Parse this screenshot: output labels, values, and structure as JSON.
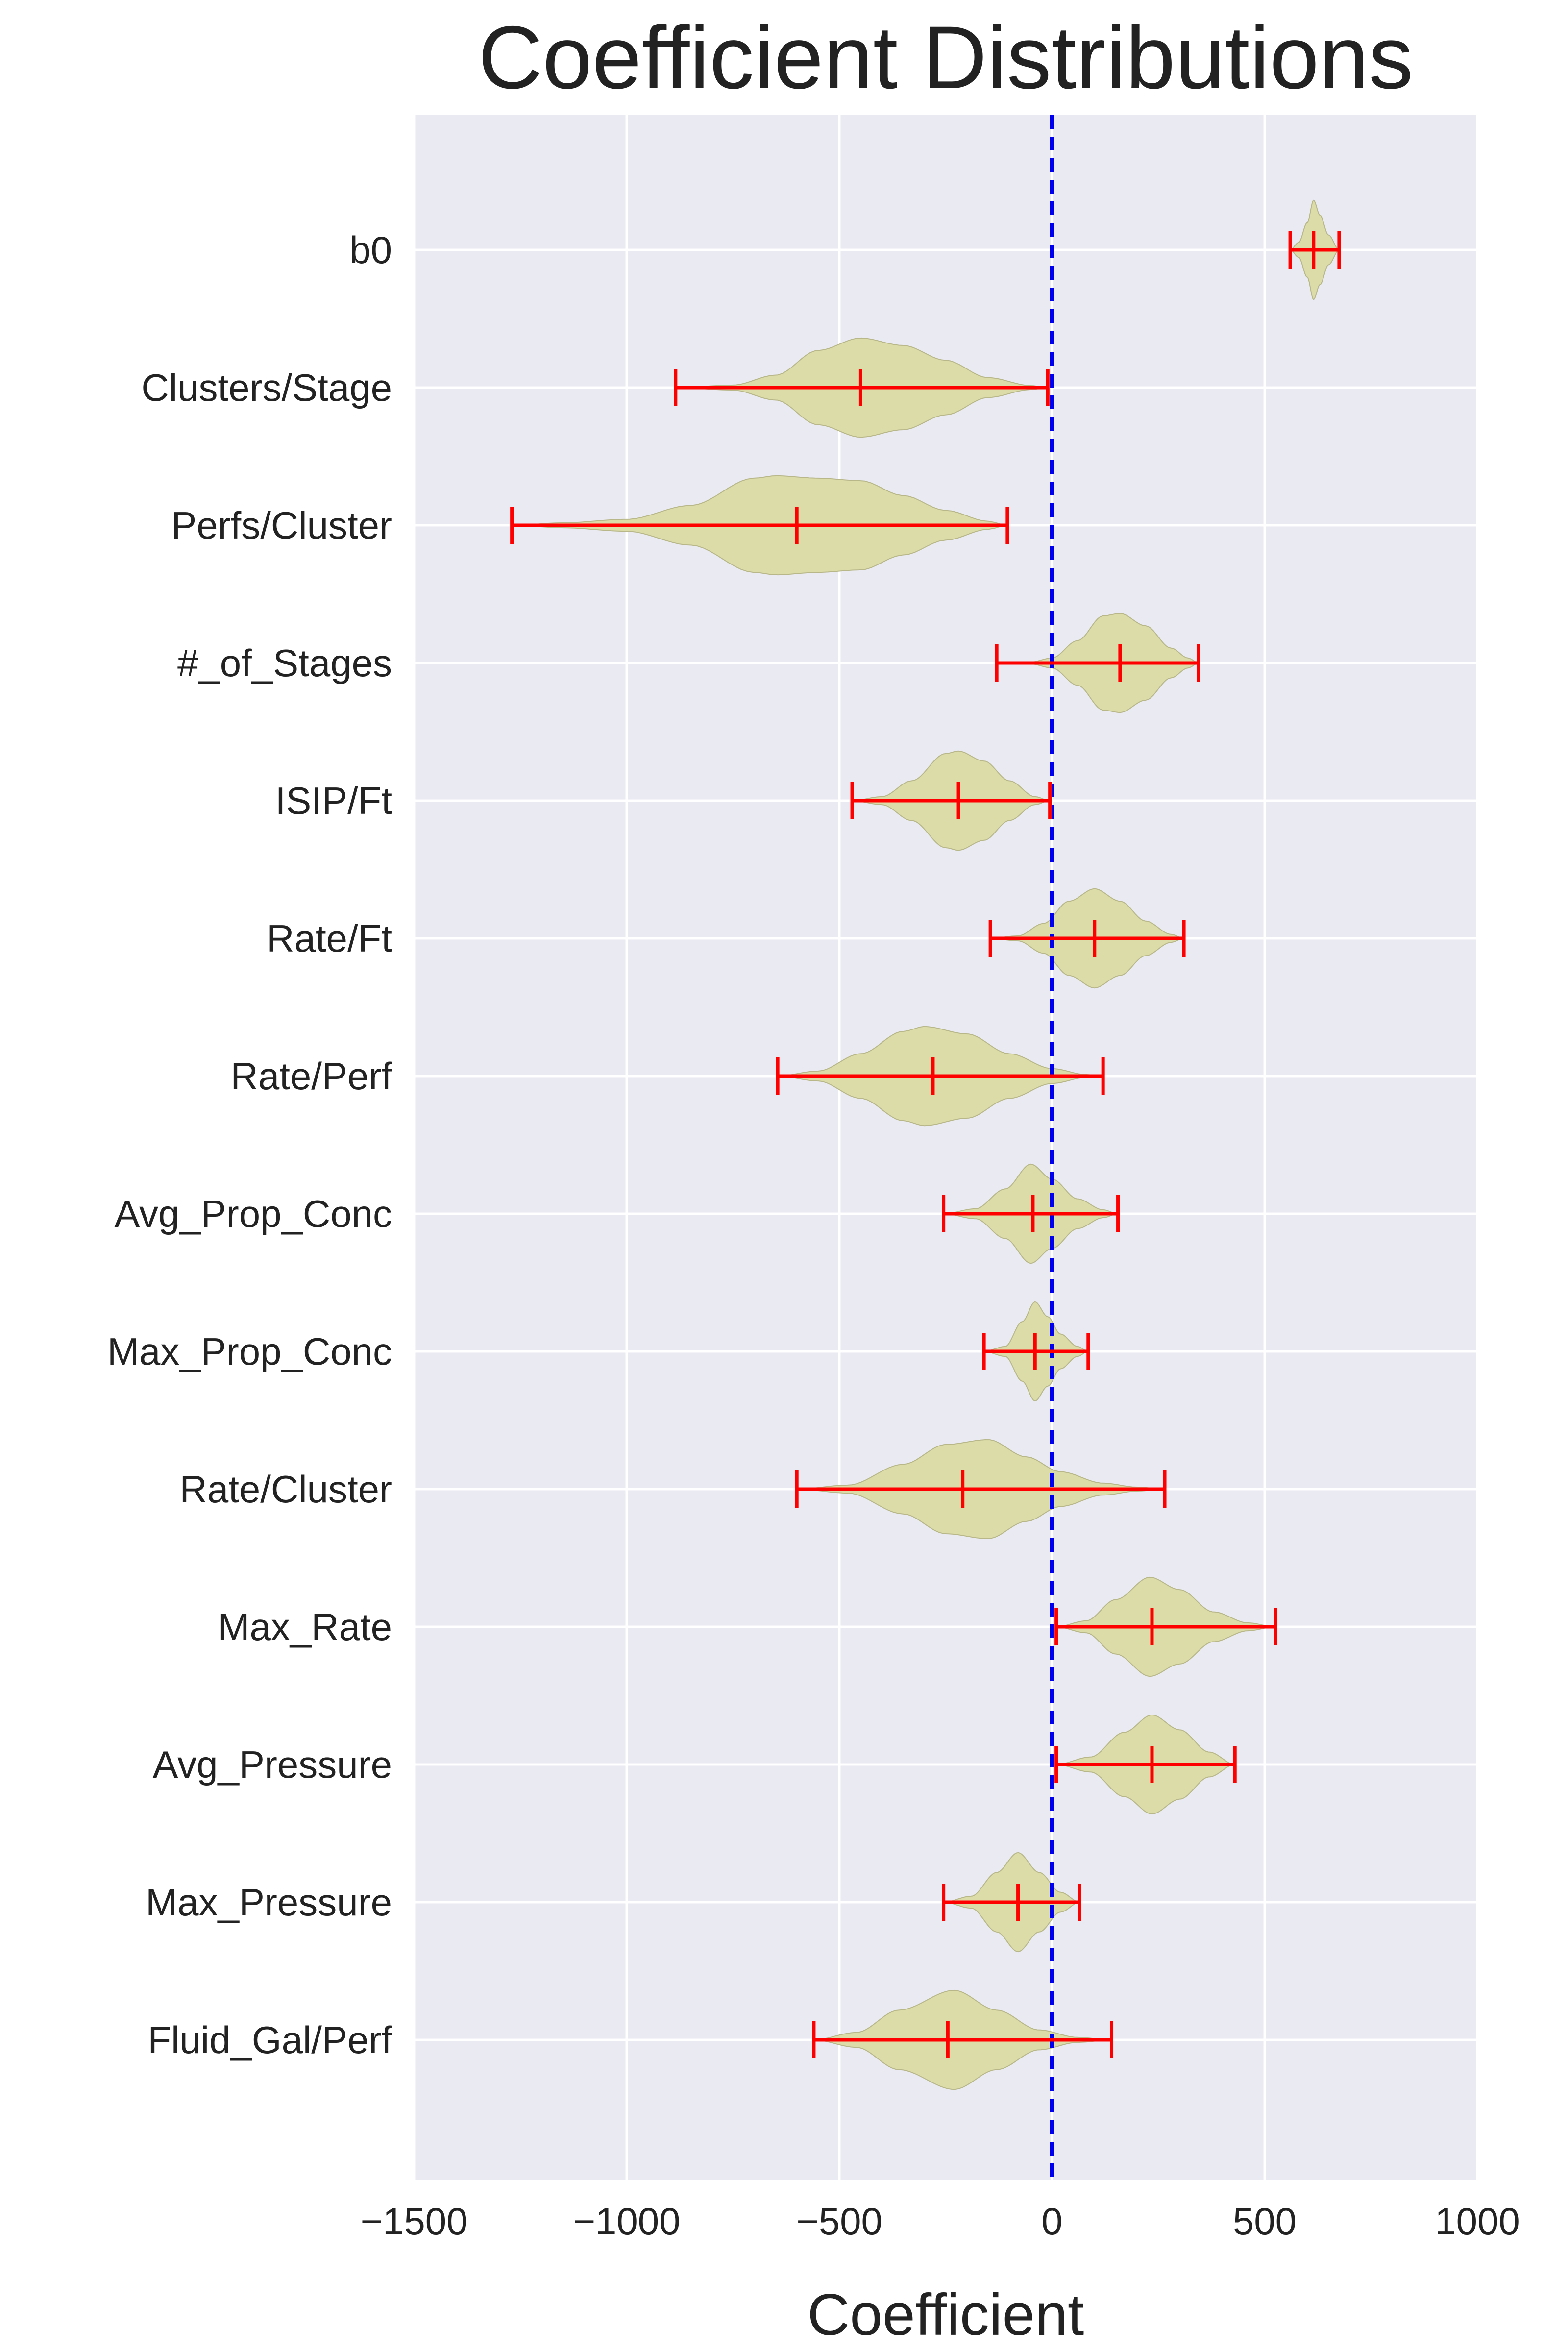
{
  "chart_data": {
    "type": "violin",
    "orientation": "horizontal",
    "title": "Coefficient Distributions",
    "xlabel": "Coefficient",
    "ylabel": "",
    "xlim": [
      -1500,
      1000
    ],
    "xticks": [
      -1500,
      -1000,
      -500,
      0,
      500,
      1000
    ],
    "xtick_labels": [
      "−1500",
      "−1000",
      "−500",
      "0",
      "500",
      "1000"
    ],
    "grid": true,
    "reference_line": {
      "x": 0,
      "style": "dashed",
      "color": "#0000ee"
    },
    "colors": {
      "background": "#eaeaf2",
      "violin_fill": "#dcdca8",
      "violin_edge": "#b7b78a",
      "interval": "#ff0000",
      "grid": "#ffffff"
    },
    "categories": [
      "b0",
      "Clusters/Stage",
      "Perfs/Cluster",
      "#_of_Stages",
      "ISIP/Ft",
      "Rate/Ft",
      "Rate/Perf",
      "Avg_Prop_Conc",
      "Max_Prop_Conc",
      "Rate/Cluster",
      "Max_Rate",
      "Avg_Pressure",
      "Max_Pressure",
      "Fluid_Gal/Perf"
    ],
    "series": [
      {
        "label": "b0",
        "min": 560,
        "median": 615,
        "max": 675,
        "profile": [
          [
            560,
            0
          ],
          [
            580,
            0.15
          ],
          [
            600,
            0.55
          ],
          [
            615,
            1.0
          ],
          [
            630,
            0.7
          ],
          [
            650,
            0.3
          ],
          [
            675,
            0
          ]
        ],
        "halfwidth": 0.35
      },
      {
        "label": "Clusters/Stage",
        "min": -885,
        "median": -450,
        "max": -10,
        "profile": [
          [
            -885,
            0
          ],
          [
            -750,
            0.05
          ],
          [
            -650,
            0.25
          ],
          [
            -550,
            0.75
          ],
          [
            -450,
            1.0
          ],
          [
            -350,
            0.85
          ],
          [
            -250,
            0.55
          ],
          [
            -150,
            0.2
          ],
          [
            -50,
            0.04
          ],
          [
            -10,
            0
          ]
        ],
        "halfwidth": 0.35
      },
      {
        "label": "Perfs/Cluster",
        "min": -1270,
        "median": -600,
        "max": -105,
        "profile": [
          [
            -1270,
            0
          ],
          [
            -1150,
            0.05
          ],
          [
            -1000,
            0.12
          ],
          [
            -850,
            0.4
          ],
          [
            -700,
            0.95
          ],
          [
            -650,
            1.0
          ],
          [
            -550,
            0.95
          ],
          [
            -450,
            0.9
          ],
          [
            -350,
            0.6
          ],
          [
            -250,
            0.3
          ],
          [
            -150,
            0.08
          ],
          [
            -105,
            0
          ]
        ],
        "halfwidth": 0.35
      },
      {
        "label": "#_of_Stages",
        "min": -130,
        "median": 160,
        "max": 345,
        "profile": [
          [
            -130,
            0
          ],
          [
            -50,
            0.02
          ],
          [
            0,
            0.1
          ],
          [
            60,
            0.45
          ],
          [
            120,
            0.95
          ],
          [
            160,
            1.0
          ],
          [
            220,
            0.75
          ],
          [
            280,
            0.3
          ],
          [
            320,
            0.1
          ],
          [
            345,
            0
          ]
        ],
        "halfwidth": 0.35
      },
      {
        "label": "ISIP/Ft",
        "min": -470,
        "median": -220,
        "max": -5,
        "profile": [
          [
            -470,
            0
          ],
          [
            -400,
            0.08
          ],
          [
            -330,
            0.4
          ],
          [
            -250,
            0.95
          ],
          [
            -220,
            1.0
          ],
          [
            -160,
            0.8
          ],
          [
            -100,
            0.4
          ],
          [
            -40,
            0.08
          ],
          [
            -5,
            0
          ]
        ],
        "halfwidth": 0.35
      },
      {
        "label": "Rate/Ft",
        "min": -145,
        "median": 100,
        "max": 310,
        "profile": [
          [
            -145,
            0
          ],
          [
            -80,
            0.05
          ],
          [
            -20,
            0.3
          ],
          [
            40,
            0.75
          ],
          [
            100,
            1.0
          ],
          [
            160,
            0.75
          ],
          [
            220,
            0.35
          ],
          [
            280,
            0.08
          ],
          [
            310,
            0
          ]
        ],
        "halfwidth": 0.35
      },
      {
        "label": "Rate/Perf",
        "min": -645,
        "median": -280,
        "max": 120,
        "profile": [
          [
            -645,
            0
          ],
          [
            -550,
            0.1
          ],
          [
            -450,
            0.45
          ],
          [
            -350,
            0.9
          ],
          [
            -300,
            1.0
          ],
          [
            -200,
            0.85
          ],
          [
            -100,
            0.45
          ],
          [
            0,
            0.15
          ],
          [
            80,
            0.03
          ],
          [
            120,
            0
          ]
        ],
        "halfwidth": 0.35
      },
      {
        "label": "Avg_Prop_Conc",
        "min": -255,
        "median": -45,
        "max": 155,
        "profile": [
          [
            -255,
            0
          ],
          [
            -180,
            0.1
          ],
          [
            -110,
            0.5
          ],
          [
            -50,
            1.0
          ],
          [
            0,
            0.7
          ],
          [
            60,
            0.3
          ],
          [
            120,
            0.08
          ],
          [
            155,
            0
          ]
        ],
        "halfwidth": 0.35
      },
      {
        "label": "Max_Prop_Conc",
        "min": -160,
        "median": -40,
        "max": 85,
        "profile": [
          [
            -160,
            0
          ],
          [
            -110,
            0.1
          ],
          [
            -70,
            0.6
          ],
          [
            -40,
            1.0
          ],
          [
            -10,
            0.7
          ],
          [
            20,
            0.35
          ],
          [
            60,
            0.1
          ],
          [
            85,
            0
          ]
        ],
        "halfwidth": 0.35
      },
      {
        "label": "Rate/Cluster",
        "min": -600,
        "median": -210,
        "max": 265,
        "profile": [
          [
            -600,
            0
          ],
          [
            -480,
            0.08
          ],
          [
            -350,
            0.5
          ],
          [
            -250,
            0.9
          ],
          [
            -150,
            1.0
          ],
          [
            -60,
            0.65
          ],
          [
            20,
            0.35
          ],
          [
            120,
            0.12
          ],
          [
            200,
            0.04
          ],
          [
            265,
            0
          ]
        ],
        "halfwidth": 0.35
      },
      {
        "label": "Max_Rate",
        "min": 10,
        "median": 235,
        "max": 525,
        "profile": [
          [
            10,
            0
          ],
          [
            80,
            0.12
          ],
          [
            150,
            0.55
          ],
          [
            230,
            1.0
          ],
          [
            300,
            0.75
          ],
          [
            380,
            0.3
          ],
          [
            460,
            0.08
          ],
          [
            525,
            0
          ]
        ],
        "halfwidth": 0.35
      },
      {
        "label": "Avg_Pressure",
        "min": 10,
        "median": 235,
        "max": 430,
        "profile": [
          [
            10,
            0
          ],
          [
            90,
            0.15
          ],
          [
            170,
            0.65
          ],
          [
            235,
            1.0
          ],
          [
            300,
            0.7
          ],
          [
            370,
            0.25
          ],
          [
            430,
            0
          ]
        ],
        "halfwidth": 0.35
      },
      {
        "label": "Max_Pressure",
        "min": -255,
        "median": -80,
        "max": 65,
        "profile": [
          [
            -255,
            0
          ],
          [
            -190,
            0.12
          ],
          [
            -130,
            0.6
          ],
          [
            -80,
            1.0
          ],
          [
            -30,
            0.6
          ],
          [
            20,
            0.2
          ],
          [
            65,
            0
          ]
        ],
        "halfwidth": 0.35
      },
      {
        "label": "Fluid_Gal/Perf",
        "min": -560,
        "median": -245,
        "max": 140,
        "profile": [
          [
            -560,
            0
          ],
          [
            -460,
            0.15
          ],
          [
            -360,
            0.6
          ],
          [
            -230,
            1.0
          ],
          [
            -130,
            0.6
          ],
          [
            -30,
            0.2
          ],
          [
            60,
            0.05
          ],
          [
            140,
            0
          ]
        ],
        "halfwidth": 0.35
      }
    ]
  }
}
